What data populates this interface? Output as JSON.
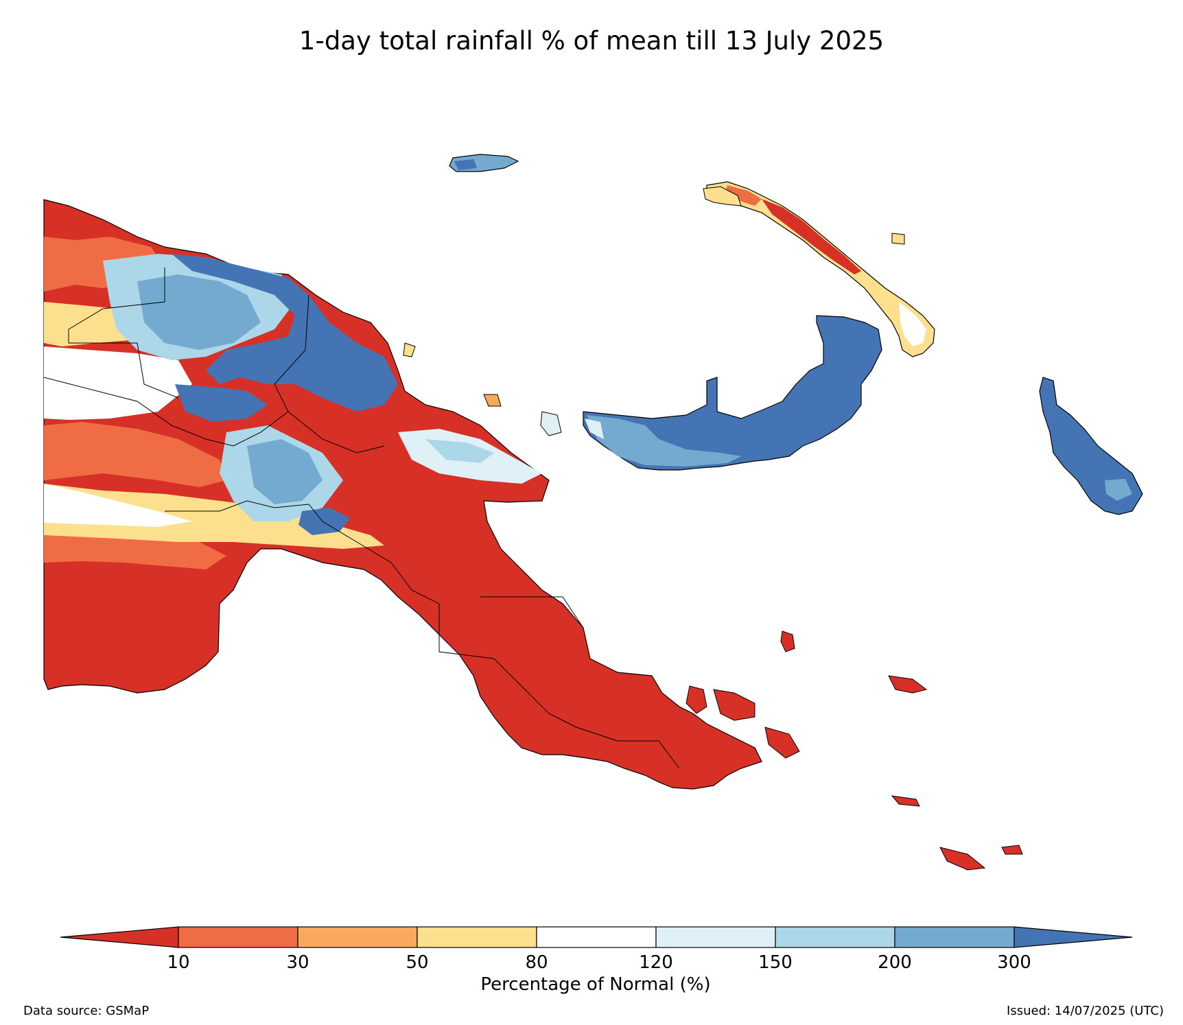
{
  "title": "1-day total rainfall % of mean till 13 July 2025",
  "colorbar": {
    "label": "Percentage of Normal (%)",
    "ticks": [
      "10",
      "30",
      "50",
      "80",
      "120",
      "150",
      "200",
      "300"
    ],
    "bins": [
      {
        "range": "<10",
        "color": "#d73027"
      },
      {
        "range": "10-30",
        "color": "#f06c44"
      },
      {
        "range": "30-50",
        "color": "#f8a95c"
      },
      {
        "range": "50-80",
        "color": "#fde08e"
      },
      {
        "range": "80-120",
        "color": "#ffffff"
      },
      {
        "range": "120-150",
        "color": "#dff1f7"
      },
      {
        "range": "150-200",
        "color": "#acd7e8"
      },
      {
        "range": "200-300",
        "color": "#74a9d0"
      },
      {
        "range": ">300",
        "color": "#4574b4"
      }
    ]
  },
  "footer": {
    "source": "Data source: GSMaP",
    "issued": "Issued: 14/07/2025 (UTC)"
  },
  "map_regions": [
    {
      "name": "western-mainland-south",
      "category": "<10"
    },
    {
      "name": "southern-highlands-band",
      "category": "80-120"
    },
    {
      "name": "north-coast-sepik",
      "category": ">300"
    },
    {
      "name": "highlands-center",
      "category": "150-200"
    },
    {
      "name": "eastern-peninsula",
      "category": "<10"
    },
    {
      "name": "new-britain",
      "category": ">300"
    },
    {
      "name": "new-ireland",
      "category": "10-30"
    },
    {
      "name": "bougainville",
      "category": ">300"
    },
    {
      "name": "manus",
      "category": "200-300"
    },
    {
      "name": "milne-bay-islands",
      "category": "<10"
    }
  ]
}
